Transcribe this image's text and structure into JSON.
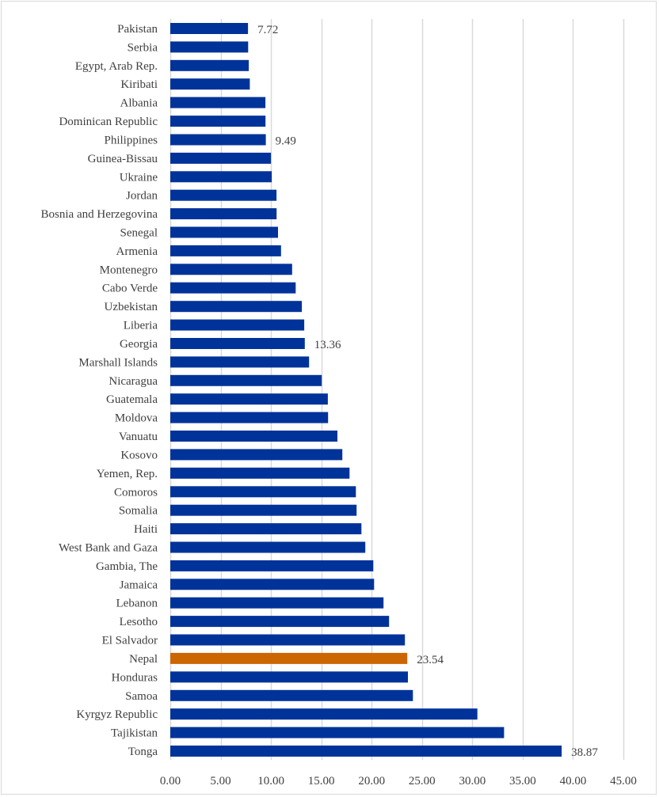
{
  "chart_data": {
    "type": "bar",
    "orientation": "horizontal",
    "title": "",
    "xlabel": "",
    "ylabel": "",
    "xlim": [
      0,
      45
    ],
    "x_ticks": [
      "0.00",
      "5.00",
      "10.00",
      "15.00",
      "20.00",
      "25.00",
      "30.00",
      "35.00",
      "40.00",
      "45.00"
    ],
    "x_tick_values": [
      0,
      5,
      10,
      15,
      20,
      25,
      30,
      35,
      40,
      45
    ],
    "grid": true,
    "legend": "none",
    "colors": {
      "default": "#003399",
      "highlight": "#CC6600",
      "grid": "#d9d9d9",
      "text": "#404040"
    },
    "categories": [
      "Pakistan",
      "Serbia",
      "Egypt, Arab Rep.",
      "Kiribati",
      "Albania",
      "Dominican Republic",
      "Philippines",
      "Guinea-Bissau",
      "Ukraine",
      "Jordan",
      "Bosnia and Herzegovina",
      "Senegal",
      "Armenia",
      "Montenegro",
      "Cabo Verde",
      "Uzbekistan",
      "Liberia",
      "Georgia",
      "Marshall Islands",
      "Nicaragua",
      "Guatemala",
      "Moldova",
      "Vanuatu",
      "Kosovo",
      "Yemen, Rep.",
      "Comoros",
      "Somalia",
      "Haiti",
      "West Bank and Gaza",
      "Gambia, The",
      "Jamaica",
      "Lebanon",
      "Lesotho",
      "El Salvador",
      "Nepal",
      "Honduras",
      "Samoa",
      "Kyrgyz Republic",
      "Tajikistan",
      "Tonga"
    ],
    "values": [
      7.72,
      7.73,
      7.8,
      7.9,
      9.45,
      9.46,
      9.49,
      10.0,
      10.08,
      10.55,
      10.56,
      10.7,
      11.0,
      12.1,
      12.45,
      13.07,
      13.3,
      13.36,
      13.78,
      15.04,
      15.65,
      15.67,
      16.6,
      17.09,
      17.8,
      18.43,
      18.5,
      18.98,
      19.37,
      20.16,
      20.24,
      21.18,
      21.73,
      23.3,
      23.54,
      23.6,
      24.1,
      30.5,
      33.15,
      38.87
    ],
    "highlight": "Nepal",
    "data_labels": [
      {
        "category": "Pakistan",
        "text": "7.72"
      },
      {
        "category": "Philippines",
        "text": "9.49"
      },
      {
        "category": "Georgia",
        "text": "13.36"
      },
      {
        "category": "Nepal",
        "text": "23.54"
      },
      {
        "category": "Tonga",
        "text": "38.87"
      }
    ]
  }
}
